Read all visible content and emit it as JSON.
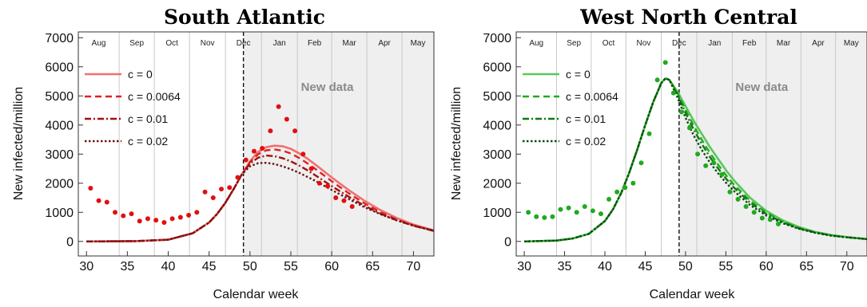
{
  "chart_data": [
    {
      "type": "line",
      "title": "South Atlantic",
      "xlabel": "Calendar week",
      "ylabel": "New infected/million",
      "xlim": [
        29,
        72.5
      ],
      "ylim": [
        -500,
        7200
      ],
      "xticks": [
        30,
        35,
        40,
        45,
        50,
        55,
        60,
        65,
        70
      ],
      "yticks": [
        0,
        1000,
        2000,
        3000,
        4000,
        5000,
        6000,
        7000
      ],
      "grid": false,
      "legend_position": "top-left",
      "months": [
        {
          "label": "Aug",
          "start": 29,
          "end": 34
        },
        {
          "label": "Sep",
          "start": 34,
          "end": 38.3
        },
        {
          "label": "Oct",
          "start": 38.3,
          "end": 42.6
        },
        {
          "label": "Nov",
          "start": 42.6,
          "end": 47
        },
        {
          "label": "Dec",
          "start": 47,
          "end": 51.4
        },
        {
          "label": "Jan",
          "start": 51.4,
          "end": 55.8
        },
        {
          "label": "Feb",
          "start": 55.8,
          "end": 60
        },
        {
          "label": "Mar",
          "start": 60,
          "end": 64.3
        },
        {
          "label": "Apr",
          "start": 64.3,
          "end": 68.6
        },
        {
          "label": "May",
          "start": 68.6,
          "end": 72.5
        }
      ],
      "cutoff_week": 49.2,
      "new_data_region": {
        "start": 49.2,
        "end": 72.5,
        "label": "New data"
      },
      "series": [
        {
          "name": "c = 0",
          "color": "#f07070",
          "dash": "solid",
          "width": 2.6,
          "x": [
            30,
            36,
            40,
            43,
            45,
            46,
            47,
            48,
            49,
            50,
            51,
            52,
            53,
            54,
            55,
            56,
            57,
            58,
            60,
            62,
            64,
            66,
            68,
            70,
            72.5
          ],
          "y": [
            0,
            10,
            60,
            280,
            650,
            950,
            1330,
            1800,
            2300,
            2750,
            3080,
            3240,
            3290,
            3270,
            3180,
            3030,
            2850,
            2640,
            2200,
            1780,
            1400,
            1070,
            800,
            580,
            380
          ]
        },
        {
          "name": "c = 0.0064",
          "color": "#e02020",
          "dash": "8,5",
          "width": 2.4,
          "x": [
            30,
            36,
            40,
            43,
            45,
            46,
            47,
            48,
            49,
            50,
            51,
            52,
            53,
            54,
            55,
            56,
            57,
            58,
            60,
            62,
            64,
            66,
            68,
            70,
            72.5
          ],
          "y": [
            0,
            10,
            60,
            280,
            650,
            950,
            1330,
            1800,
            2300,
            2720,
            3000,
            3130,
            3160,
            3120,
            3020,
            2870,
            2690,
            2490,
            2070,
            1670,
            1310,
            1000,
            750,
            550,
            360
          ]
        },
        {
          "name": "c = 0.01",
          "color": "#a01010",
          "dash": "8,3,2,3",
          "width": 2.4,
          "x": [
            30,
            36,
            40,
            43,
            45,
            46,
            47,
            48,
            49,
            50,
            51,
            52,
            53,
            54,
            55,
            56,
            57,
            58,
            60,
            62,
            64,
            66,
            68,
            70,
            72.5
          ],
          "y": [
            0,
            10,
            60,
            280,
            650,
            950,
            1330,
            1800,
            2300,
            2680,
            2880,
            2950,
            2930,
            2860,
            2750,
            2610,
            2450,
            2270,
            1900,
            1550,
            1230,
            950,
            720,
            540,
            360
          ]
        },
        {
          "name": "c = 0.02",
          "color": "#6e1414",
          "dash": "2.5,2.5",
          "width": 2.4,
          "x": [
            30,
            36,
            40,
            43,
            45,
            46,
            47,
            48,
            49,
            50,
            51,
            52,
            53,
            54,
            55,
            56,
            57,
            58,
            60,
            62,
            64,
            66,
            68,
            70,
            72.5
          ],
          "y": [
            0,
            10,
            60,
            280,
            650,
            950,
            1330,
            1800,
            2300,
            2580,
            2690,
            2700,
            2660,
            2580,
            2480,
            2360,
            2220,
            2080,
            1770,
            1470,
            1180,
            930,
            720,
            540,
            370
          ]
        }
      ],
      "scatter": {
        "color": "#e01010",
        "x": [
          30.5,
          31.5,
          32.5,
          33.5,
          34.5,
          35.5,
          36.5,
          37.5,
          38.5,
          39.5,
          40.5,
          41.5,
          42.5,
          43.5,
          44.5,
          45.5,
          46.5,
          47.5,
          48.5,
          49.5,
          50.5,
          51.5,
          52.5,
          53.5,
          54.5,
          55.5,
          56.5,
          57.5,
          58.5,
          59.5,
          60.5,
          61.5,
          62.5
        ],
        "y": [
          1830,
          1400,
          1350,
          1000,
          880,
          950,
          700,
          780,
          730,
          650,
          780,
          830,
          900,
          1000,
          1700,
          1500,
          1800,
          1850,
          2200,
          2800,
          3100,
          3200,
          3800,
          4630,
          4200,
          3800,
          3000,
          2500,
          2000,
          1900,
          1500,
          1400,
          1200
        ]
      }
    },
    {
      "type": "line",
      "title": "West North Central",
      "xlabel": "Calendar week",
      "ylabel": "New infected/million",
      "xlim": [
        29,
        72.5
      ],
      "ylim": [
        -500,
        7200
      ],
      "xticks": [
        30,
        35,
        40,
        45,
        50,
        55,
        60,
        65,
        70
      ],
      "yticks": [
        0,
        1000,
        2000,
        3000,
        4000,
        5000,
        6000,
        7000
      ],
      "grid": false,
      "legend_position": "top-left",
      "months": [
        {
          "label": "Aug",
          "start": 29,
          "end": 34
        },
        {
          "label": "Sep",
          "start": 34,
          "end": 38.3
        },
        {
          "label": "Oct",
          "start": 38.3,
          "end": 42.6
        },
        {
          "label": "Nov",
          "start": 42.6,
          "end": 47
        },
        {
          "label": "Dec",
          "start": 47,
          "end": 51.4
        },
        {
          "label": "Jan",
          "start": 51.4,
          "end": 55.8
        },
        {
          "label": "Feb",
          "start": 55.8,
          "end": 60
        },
        {
          "label": "Mar",
          "start": 60,
          "end": 64.3
        },
        {
          "label": "Apr",
          "start": 64.3,
          "end": 68.6
        },
        {
          "label": "May",
          "start": 68.6,
          "end": 72.5
        }
      ],
      "cutoff_week": 49.2,
      "new_data_region": {
        "start": 49.2,
        "end": 72.5,
        "label": "New data"
      },
      "series": [
        {
          "name": "c = 0",
          "color": "#5ac85a",
          "dash": "solid",
          "width": 2.6,
          "x": [
            30,
            34,
            36,
            38,
            40,
            41,
            42,
            43,
            44,
            45,
            46,
            47,
            47.5,
            48,
            49,
            50,
            51,
            52,
            53,
            54,
            55,
            56,
            58,
            60,
            62,
            64,
            66,
            68,
            70,
            72.5
          ],
          "y": [
            0,
            30,
            100,
            260,
            700,
            1100,
            1650,
            2350,
            3150,
            4000,
            4800,
            5450,
            5600,
            5550,
            5150,
            4650,
            4150,
            3700,
            3250,
            2850,
            2450,
            2100,
            1500,
            1050,
            730,
            500,
            330,
            220,
            150,
            80
          ]
        },
        {
          "name": "c = 0.0064",
          "color": "#1faa1f",
          "dash": "8,5",
          "width": 2.4,
          "x": [
            30,
            34,
            36,
            38,
            40,
            41,
            42,
            43,
            44,
            45,
            46,
            47,
            47.5,
            48,
            49,
            50,
            51,
            52,
            53,
            54,
            55,
            56,
            58,
            60,
            62,
            64,
            66,
            68,
            70,
            72.5
          ],
          "y": [
            0,
            30,
            100,
            260,
            700,
            1100,
            1650,
            2350,
            3150,
            4000,
            4800,
            5450,
            5600,
            5550,
            5100,
            4520,
            3980,
            3500,
            3050,
            2650,
            2280,
            1950,
            1400,
            990,
            690,
            470,
            320,
            210,
            140,
            80
          ]
        },
        {
          "name": "c = 0.01",
          "color": "#0e7a0e",
          "dash": "8,3,2,3",
          "width": 2.4,
          "x": [
            30,
            34,
            36,
            38,
            40,
            41,
            42,
            43,
            44,
            45,
            46,
            47,
            47.5,
            48,
            49,
            50,
            51,
            52,
            53,
            54,
            55,
            56,
            58,
            60,
            62,
            64,
            66,
            68,
            70,
            72.5
          ],
          "y": [
            0,
            30,
            100,
            260,
            700,
            1100,
            1650,
            2350,
            3150,
            4000,
            4800,
            5450,
            5600,
            5550,
            5050,
            4420,
            3850,
            3360,
            2910,
            2520,
            2160,
            1850,
            1330,
            940,
            660,
            450,
            310,
            210,
            140,
            80
          ]
        },
        {
          "name": "c = 0.02",
          "color": "#0a4a12",
          "dash": "2.5,2.5",
          "width": 2.4,
          "x": [
            30,
            34,
            36,
            38,
            40,
            41,
            42,
            43,
            44,
            45,
            46,
            47,
            47.5,
            48,
            49,
            50,
            51,
            52,
            53,
            54,
            55,
            56,
            58,
            60,
            62,
            64,
            66,
            68,
            70,
            72.5
          ],
          "y": [
            0,
            30,
            100,
            260,
            700,
            1100,
            1650,
            2350,
            3150,
            4000,
            4800,
            5450,
            5600,
            5550,
            4950,
            4250,
            3650,
            3150,
            2720,
            2350,
            2020,
            1730,
            1250,
            890,
            630,
            440,
            300,
            200,
            140,
            80
          ]
        }
      ],
      "scatter": {
        "color": "#1faa1f",
        "x": [
          30.5,
          31.5,
          32.5,
          33.5,
          34.5,
          35.5,
          36.5,
          37.5,
          38.5,
          39.5,
          40.5,
          41.5,
          42.5,
          43.5,
          44.5,
          45.5,
          46.5,
          47.5,
          48.5,
          49.5,
          50.5,
          51.5,
          52.5,
          53.5,
          54.5,
          55.5,
          56.5,
          57.5,
          58.5,
          59.5,
          60.5,
          61.5
        ],
        "y": [
          1000,
          850,
          820,
          850,
          1100,
          1150,
          1000,
          1200,
          1050,
          950,
          1450,
          1700,
          1850,
          2000,
          2700,
          3700,
          5550,
          6150,
          5100,
          4450,
          3900,
          3000,
          2600,
          2700,
          2300,
          1700,
          1450,
          1200,
          1000,
          800,
          750,
          600
        ]
      }
    }
  ]
}
